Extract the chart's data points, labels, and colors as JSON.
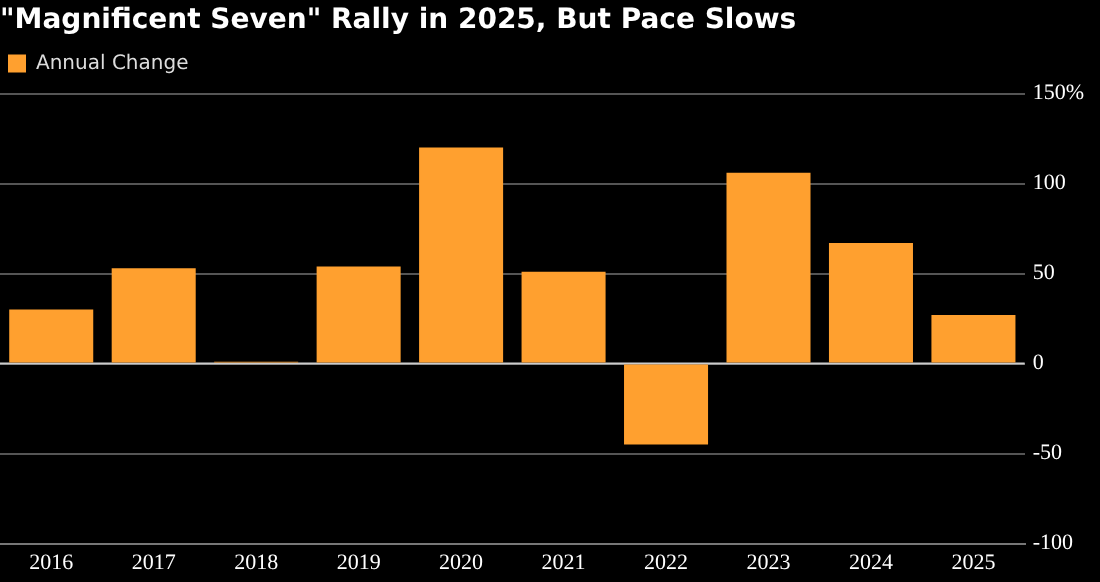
{
  "chart_data": {
    "type": "bar",
    "title": "\"Magnificent Seven\" Rally in 2025, But Pace Slows",
    "categories": [
      "2016",
      "2017",
      "2018",
      "2019",
      "2020",
      "2021",
      "2022",
      "2023",
      "2024",
      "2025"
    ],
    "series": [
      {
        "name": "Annual Change",
        "color": "#ffa02f",
        "values": [
          30,
          53,
          1,
          54,
          120,
          51,
          -45,
          106,
          67,
          27
        ]
      }
    ],
    "ylim": [
      -100,
      150
    ],
    "yticks": [
      -100,
      -50,
      0,
      50,
      100,
      {
        "value": 150,
        "label": "150%"
      }
    ],
    "grid": "y",
    "legend": "top left"
  }
}
